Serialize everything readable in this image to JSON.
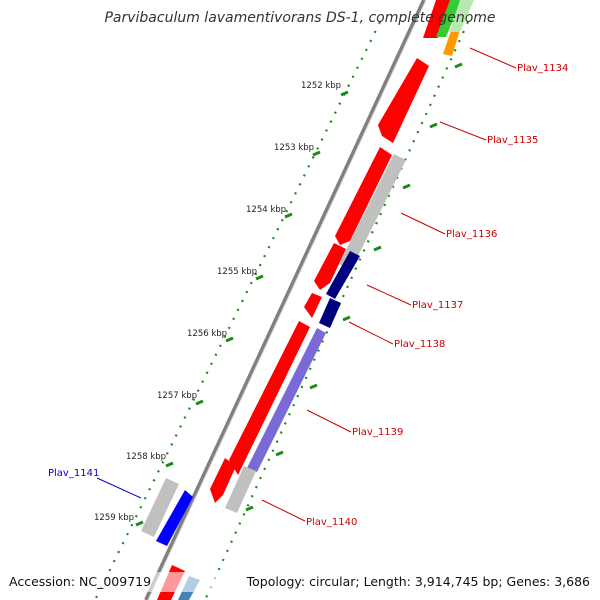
{
  "title": "Parvibaculum lavamentivorans DS-1, complete genome",
  "footer": {
    "accession": "Accession: NC_009719",
    "topology": "Topology: circular; Length: 3,914,745 bp; Genes: 3,686"
  },
  "kbp_marks": [
    "1252 kbp",
    "1253 kbp",
    "1254 kbp",
    "1255 kbp",
    "1256 kbp",
    "1257 kbp",
    "1258 kbp",
    "1259 kbp"
  ],
  "gene_labels": [
    {
      "text": "Plav_1134",
      "color": "#cc0000"
    },
    {
      "text": "Plav_1135",
      "color": "#cc0000"
    },
    {
      "text": "Plav_1136",
      "color": "#cc0000"
    },
    {
      "text": "Plav_1137",
      "color": "#cc0000"
    },
    {
      "text": "Plav_1138",
      "color": "#cc0000"
    },
    {
      "text": "Plav_1139",
      "color": "#cc0000"
    },
    {
      "text": "Plav_1140",
      "color": "#cc0000"
    },
    {
      "text": "Plav_1141",
      "color": "#0000cc"
    }
  ],
  "colors": {
    "cds": "#ff0000",
    "gene_gray": "#c0c0c0",
    "blue": "#0000ff",
    "navy": "#00007f",
    "slate_blue": "#7a6ad8",
    "steel_blue": "#4682b4",
    "green": "#33cc33",
    "orange": "#ff9900",
    "backbone": "#808080",
    "tick_green": "#1a8c1a"
  }
}
